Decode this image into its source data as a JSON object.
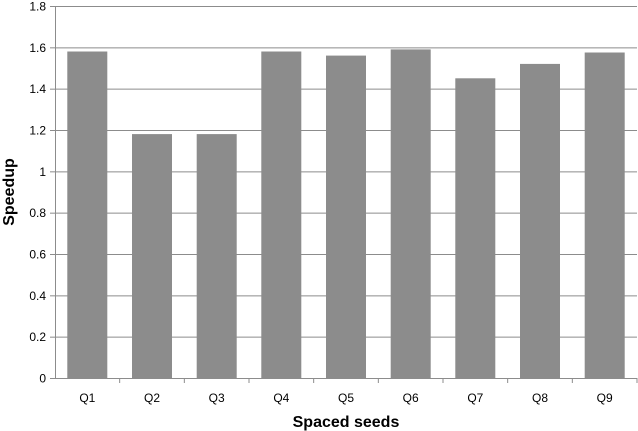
{
  "chart_data": {
    "type": "bar",
    "title": "",
    "xlabel": "Spaced seeds",
    "ylabel": "Speedup",
    "categories": [
      "Q1",
      "Q2",
      "Q3",
      "Q4",
      "Q5",
      "Q6",
      "Q7",
      "Q8",
      "Q9"
    ],
    "values": [
      1.58,
      1.18,
      1.18,
      1.58,
      1.56,
      1.59,
      1.45,
      1.52,
      1.575
    ],
    "ylim": [
      0,
      1.8
    ],
    "yticks": [
      "0",
      "0.2",
      "0.4",
      "0.6",
      "0.8",
      "1",
      "1.2",
      "1.4",
      "1.6",
      "1.8"
    ],
    "grid": true,
    "legend": "none",
    "bar_color": "#8c8c8c",
    "grid_color": "#8c8c8c",
    "axis_color": "#8c8c8c"
  }
}
